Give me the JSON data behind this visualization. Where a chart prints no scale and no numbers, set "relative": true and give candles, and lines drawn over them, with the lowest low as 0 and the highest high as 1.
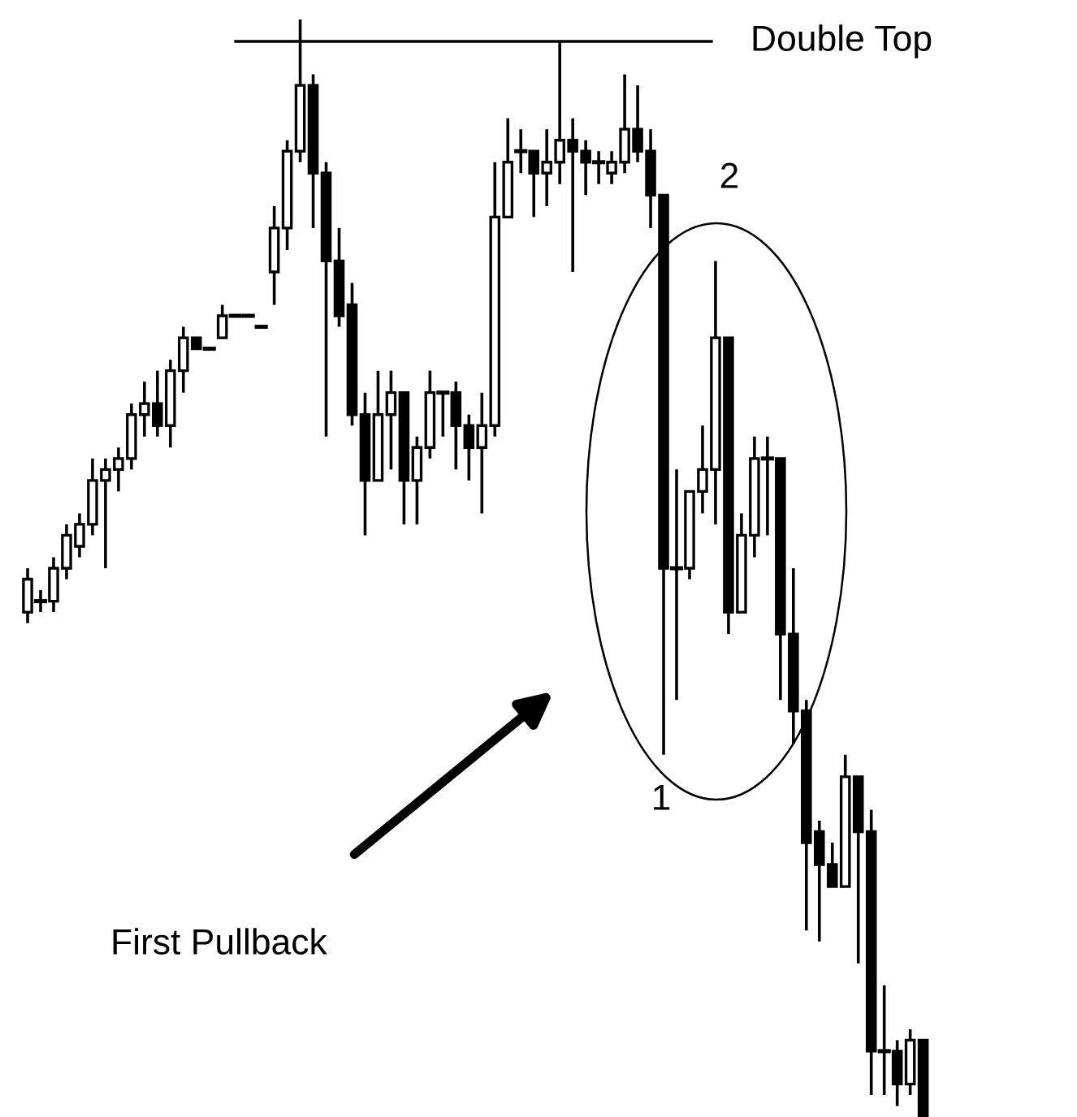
{
  "chart_data": {
    "type": "candlestick",
    "relative": true,
    "categories": [
      null,
      null,
      null,
      null,
      null,
      null,
      null,
      null,
      null,
      null,
      null,
      null,
      null,
      null,
      null,
      null,
      null,
      null,
      null,
      null,
      null,
      null,
      null,
      null,
      null,
      null,
      null,
      null,
      null,
      null,
      null,
      null,
      null,
      null,
      null,
      null,
      null,
      null,
      null,
      null,
      null,
      null,
      null,
      null,
      null,
      null,
      null,
      null,
      null,
      null,
      null,
      null,
      null,
      null,
      null,
      null,
      null,
      null,
      null,
      null,
      null,
      null,
      null,
      null,
      null,
      null,
      null,
      null,
      null,
      null
    ],
    "ohlc": [
      [
        0.46,
        0.5,
        0.45,
        0.49
      ],
      [
        0.47,
        0.48,
        0.46,
        0.47
      ],
      [
        0.47,
        0.51,
        0.46,
        0.5
      ],
      [
        0.5,
        0.54,
        0.49,
        0.53
      ],
      [
        0.52,
        0.55,
        0.51,
        0.54
      ],
      [
        0.54,
        0.6,
        0.53,
        0.58
      ],
      [
        0.58,
        0.6,
        0.5,
        0.59
      ],
      [
        0.59,
        0.61,
        0.57,
        0.6
      ],
      [
        0.6,
        0.65,
        0.59,
        0.64
      ],
      [
        0.64,
        0.67,
        0.62,
        0.65
      ],
      [
        0.65,
        0.68,
        0.62,
        0.63
      ],
      [
        0.63,
        0.69,
        0.61,
        0.68
      ],
      [
        0.68,
        0.72,
        0.66,
        0.71
      ],
      [
        0.71,
        0.71,
        0.7,
        0.7
      ],
      [
        0.7,
        0.7,
        0.7,
        0.7
      ],
      [
        0.71,
        0.74,
        0.71,
        0.73
      ],
      [
        0.73,
        0.73,
        0.73,
        0.73
      ],
      [
        0.73,
        0.73,
        0.73,
        0.73
      ],
      [
        0.72,
        0.72,
        0.72,
        0.72
      ],
      [
        0.77,
        0.83,
        0.74,
        0.81
      ],
      [
        0.81,
        0.89,
        0.79,
        0.88
      ],
      [
        0.88,
        1.0,
        0.87,
        0.94
      ],
      [
        0.94,
        0.95,
        0.81,
        0.86
      ],
      [
        0.86,
        0.87,
        0.62,
        0.78
      ],
      [
        0.78,
        0.81,
        0.72,
        0.73
      ],
      [
        0.74,
        0.76,
        0.63,
        0.64
      ],
      [
        0.64,
        0.66,
        0.53,
        0.58
      ],
      [
        0.58,
        0.68,
        0.58,
        0.64
      ],
      [
        0.64,
        0.68,
        0.59,
        0.66
      ],
      [
        0.66,
        0.66,
        0.54,
        0.58
      ],
      [
        0.58,
        0.62,
        0.54,
        0.61
      ],
      [
        0.61,
        0.68,
        0.6,
        0.66
      ],
      [
        0.66,
        0.66,
        0.62,
        0.66
      ],
      [
        0.66,
        0.67,
        0.59,
        0.63
      ],
      [
        0.63,
        0.64,
        0.58,
        0.61
      ],
      [
        0.61,
        0.66,
        0.55,
        0.63
      ],
      [
        0.63,
        0.87,
        0.62,
        0.82
      ],
      [
        0.82,
        0.91,
        0.82,
        0.87
      ],
      [
        0.88,
        0.9,
        0.86,
        0.88
      ],
      [
        0.88,
        0.88,
        0.82,
        0.86
      ],
      [
        0.86,
        0.9,
        0.83,
        0.87
      ],
      [
        0.87,
        0.98,
        0.85,
        0.89
      ],
      [
        0.89,
        0.91,
        0.77,
        0.88
      ],
      [
        0.88,
        0.89,
        0.84,
        0.87
      ],
      [
        0.87,
        0.88,
        0.85,
        0.87
      ],
      [
        0.86,
        0.88,
        0.85,
        0.87
      ],
      [
        0.87,
        0.95,
        0.86,
        0.9
      ],
      [
        0.9,
        0.94,
        0.87,
        0.88
      ],
      [
        0.88,
        0.9,
        0.81,
        0.84
      ],
      [
        0.84,
        0.84,
        0.33,
        0.5
      ],
      [
        0.5,
        0.59,
        0.38,
        0.5
      ],
      [
        0.5,
        0.57,
        0.49,
        0.57
      ],
      [
        0.57,
        0.63,
        0.55,
        0.59
      ],
      [
        0.59,
        0.78,
        0.54,
        0.71
      ],
      [
        0.71,
        0.71,
        0.44,
        0.46
      ],
      [
        0.46,
        0.55,
        0.46,
        0.53
      ],
      [
        0.53,
        0.62,
        0.51,
        0.6
      ],
      [
        0.6,
        0.62,
        0.53,
        0.6
      ],
      [
        0.6,
        0.6,
        0.38,
        0.44
      ],
      [
        0.44,
        0.5,
        0.34,
        0.37
      ],
      [
        0.37,
        0.38,
        0.17,
        0.25
      ],
      [
        0.26,
        0.27,
        0.16,
        0.23
      ],
      [
        0.23,
        0.25,
        0.21,
        0.21
      ],
      [
        0.21,
        0.33,
        0.21,
        0.31
      ],
      [
        0.31,
        0.31,
        0.14,
        0.26
      ],
      [
        0.26,
        0.28,
        0.02,
        0.06
      ],
      [
        0.06,
        0.12,
        0.02,
        0.06
      ],
      [
        0.06,
        0.07,
        0.01,
        0.03
      ],
      [
        0.03,
        0.08,
        0.02,
        0.07
      ],
      [
        0.07,
        0.07,
        0.0,
        0.0
      ]
    ],
    "ref_lines": [
      {
        "axis": "y",
        "value": 0.98,
        "label": "Double Top"
      }
    ],
    "annotations": [
      "1",
      "2",
      "First Pullback"
    ]
  }
}
